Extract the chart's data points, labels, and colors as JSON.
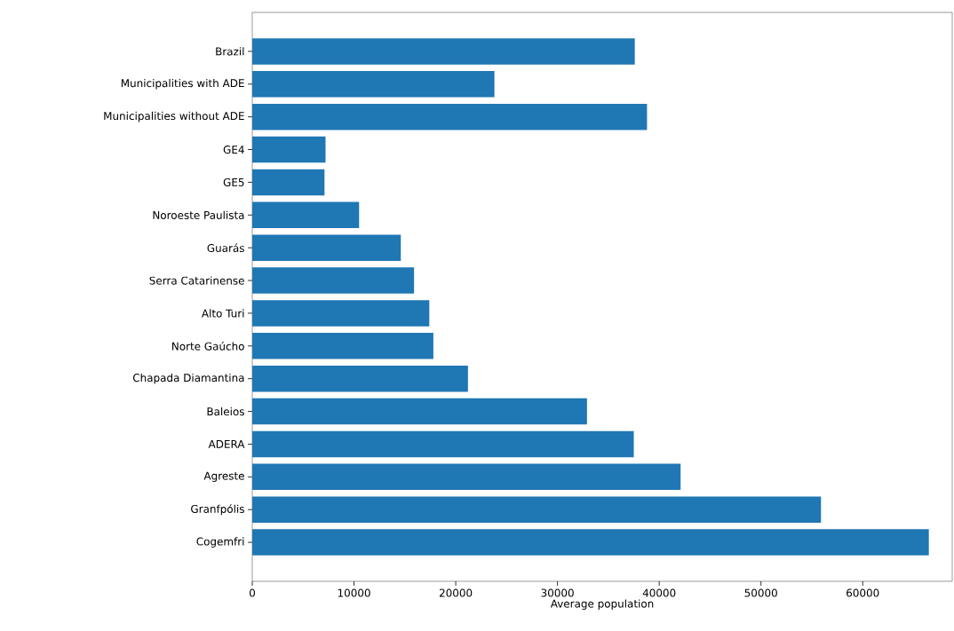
{
  "chart_data": {
    "type": "bar",
    "orientation": "horizontal",
    "xlabel": "Average population",
    "categories": [
      "Brazil",
      "Municipalities with ADE",
      "Municipalities without ADE",
      "GE4",
      "GE5",
      "Noroeste Paulista",
      "Guarás",
      "Serra Catarinense",
      "Alto Turi",
      "Norte Gaúcho",
      "Chapada Diamantina",
      "Baleios",
      "ADERA",
      "Agreste",
      "Granfpólis",
      "Cogemfri"
    ],
    "values": [
      37600,
      23800,
      38800,
      7200,
      7100,
      10500,
      14600,
      15900,
      17400,
      17800,
      21200,
      32900,
      37500,
      42100,
      55900,
      66500
    ],
    "color": "#1f77b4",
    "xlim": [
      0,
      68800
    ],
    "xticks": [
      0,
      10000,
      20000,
      30000,
      40000,
      50000,
      60000
    ]
  }
}
